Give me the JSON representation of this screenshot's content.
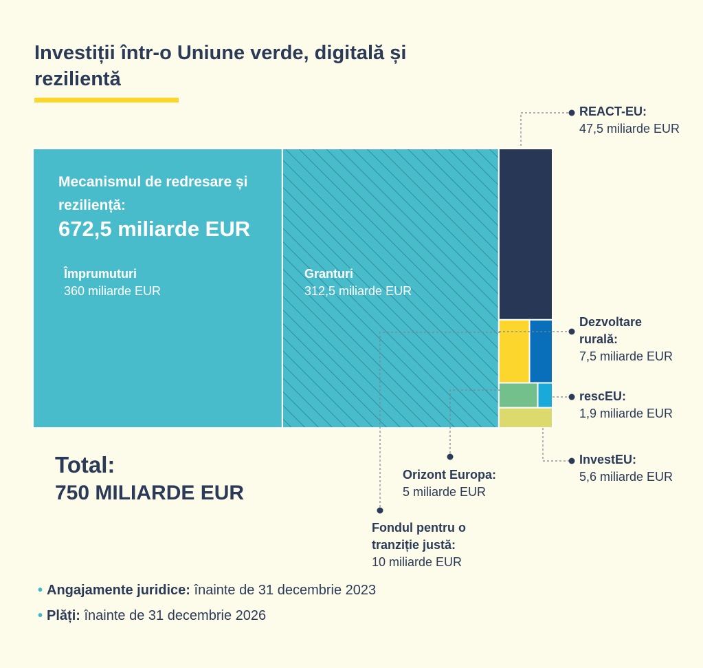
{
  "title": "Investiții într-o Uniune verde, digitală și rezilientă",
  "chart_data": {
    "type": "treemap",
    "unit": "miliarde EUR",
    "items": [
      {
        "name": "Mecanismul de redresare și reziliență:",
        "value": 672.5,
        "value_label": "672,5 miliarde EUR",
        "children": [
          {
            "name": "Împrumuturi",
            "value": 360,
            "value_label": "360 miliarde EUR",
            "color": "#49bccb"
          },
          {
            "name": "Granturi",
            "value": 312.5,
            "value_label": "312,5 miliarde EUR",
            "color": "#49bccb",
            "pattern": "hatched"
          }
        ]
      },
      {
        "name": "REACT-EU:",
        "value": 47.5,
        "value_label": "47,5 miliarde EUR",
        "color": "#273755"
      },
      {
        "name": "Fondul pentru o tranziție justă:",
        "value": 10,
        "value_label": "10 miliarde EUR",
        "color": "#fcd62c"
      },
      {
        "name": "Dezvoltare rurală:",
        "value": 7.5,
        "value_label": "7,5 miliarde EUR",
        "color": "#0a6fbb"
      },
      {
        "name": "InvestEU:",
        "value": 5.6,
        "value_label": "5,6 miliarde EUR",
        "color": "#dcda6c"
      },
      {
        "name": "Orizont Europa:",
        "value": 5,
        "value_label": "5 miliarde EUR",
        "color": "#74c08c"
      },
      {
        "name": "rescEU:",
        "value": 1.9,
        "value_label": "1,9 miliarde EUR",
        "color": "#1aaad9"
      }
    ]
  },
  "total": {
    "label": "Total:",
    "value": "750 MILIARDE EUR"
  },
  "notes": [
    {
      "bold": "Angajamente juridice:",
      "text": " înainte de 31 decembrie 2023"
    },
    {
      "bold": "Plăți:",
      "text": "  înainte de 31 decembrie 2026"
    }
  ],
  "colors": {
    "background": "#fdfbea",
    "text": "#2b3a57",
    "accent_underline": "#fcd62c"
  }
}
